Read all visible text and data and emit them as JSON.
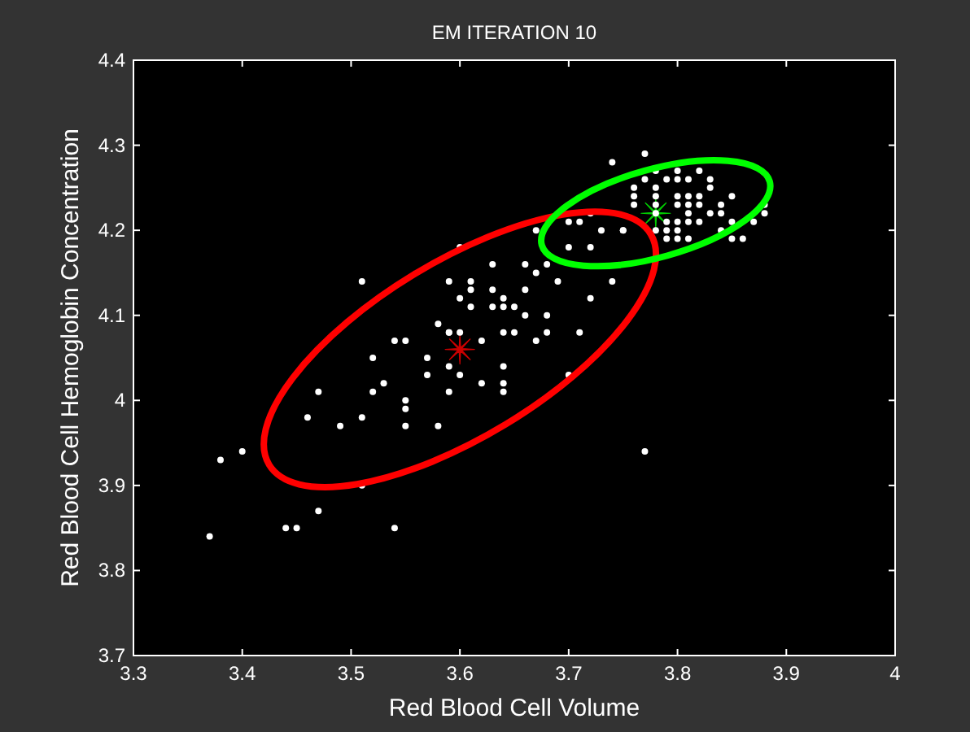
{
  "chart_data": {
    "type": "scatter",
    "title": "EM ITERATION 10",
    "xlabel": "Red Blood Cell Volume",
    "ylabel": "Red Blood Cell Hemoglobin Concentration",
    "xlim": [
      3.3,
      4
    ],
    "ylim": [
      3.7,
      4.4
    ],
    "xticks": [
      3.3,
      3.4,
      3.5,
      3.6,
      3.7,
      3.8,
      3.9,
      4
    ],
    "yticks": [
      3.7,
      3.8,
      3.9,
      4,
      4.1,
      4.2,
      4.3,
      4.4
    ],
    "grid": false,
    "series": [
      {
        "marker": "circle",
        "color": "#ffffff",
        "x": [
          3.37,
          3.38,
          3.4,
          3.44,
          3.45,
          3.47,
          3.51,
          3.54,
          3.51,
          3.6,
          3.52,
          3.47,
          3.46,
          3.49,
          3.51,
          3.52,
          3.53,
          3.55,
          3.55,
          3.55,
          3.58,
          3.54,
          3.55,
          3.57,
          3.57,
          3.59,
          3.59,
          3.6,
          3.59,
          3.59,
          3.58,
          3.6,
          3.62,
          3.64,
          3.65,
          3.66,
          3.64,
          3.62,
          3.64,
          3.64,
          3.61,
          3.6,
          3.59,
          3.61,
          3.61,
          3.63,
          3.64,
          3.63,
          3.63,
          3.64,
          3.65,
          3.66,
          3.66,
          3.67,
          3.67,
          3.67,
          3.74,
          3.77,
          3.7,
          3.72,
          3.73,
          3.75,
          3.75,
          3.72,
          3.71,
          3.7,
          3.74,
          3.72,
          3.68,
          3.68,
          3.71,
          3.7,
          3.69,
          3.68,
          3.77,
          3.76,
          3.76,
          3.76,
          3.78,
          3.77,
          3.78,
          3.78,
          3.79,
          3.8,
          3.8,
          3.81,
          3.82,
          3.83,
          3.81,
          3.82,
          3.83,
          3.8,
          3.8,
          3.81,
          3.82,
          3.84,
          3.85,
          3.78,
          3.78,
          3.79,
          3.8,
          3.81,
          3.81,
          3.83,
          3.84,
          3.78,
          3.79,
          3.8,
          3.81,
          3.82,
          3.84,
          3.85,
          3.87,
          3.88,
          3.88,
          3.79,
          3.8,
          3.85,
          3.86
        ],
        "values": [
          3.84,
          3.93,
          3.94,
          3.85,
          3.85,
          3.87,
          3.9,
          3.85,
          4.14,
          4.18,
          4.05,
          4.01,
          3.98,
          3.97,
          3.98,
          4.01,
          4.02,
          4.0,
          3.99,
          3.97,
          3.97,
          4.07,
          4.07,
          4.05,
          4.03,
          4.01,
          4.04,
          4.03,
          4.08,
          4.08,
          4.09,
          4.08,
          4.07,
          4.08,
          4.08,
          4.1,
          4.04,
          4.02,
          4.02,
          4.01,
          4.11,
          4.12,
          4.14,
          4.14,
          4.13,
          4.11,
          4.11,
          4.16,
          4.13,
          4.12,
          4.11,
          4.13,
          4.16,
          4.15,
          4.07,
          4.2,
          4.28,
          4.29,
          4.18,
          4.18,
          4.2,
          4.2,
          4.2,
          4.22,
          4.21,
          4.21,
          4.14,
          4.12,
          4.1,
          4.08,
          4.08,
          4.03,
          4.14,
          4.16,
          3.94,
          4.25,
          4.24,
          4.23,
          4.27,
          4.26,
          4.25,
          4.24,
          4.26,
          4.27,
          4.26,
          4.26,
          4.27,
          4.26,
          4.24,
          4.24,
          4.25,
          4.24,
          4.23,
          4.23,
          4.23,
          4.23,
          4.24,
          4.23,
          4.22,
          4.21,
          4.21,
          4.22,
          4.21,
          4.22,
          4.22,
          4.2,
          4.2,
          4.2,
          4.19,
          4.21,
          4.2,
          4.21,
          4.21,
          4.22,
          4.23,
          4.19,
          4.19,
          4.19,
          4.19
        ]
      },
      {
        "marker": "star",
        "color": "#cc0000",
        "x": [
          3.6
        ],
        "values": [
          4.06
        ]
      },
      {
        "marker": "star",
        "color": "#00cc00",
        "x": [
          3.78
        ],
        "values": [
          4.22
        ]
      }
    ]
  }
}
